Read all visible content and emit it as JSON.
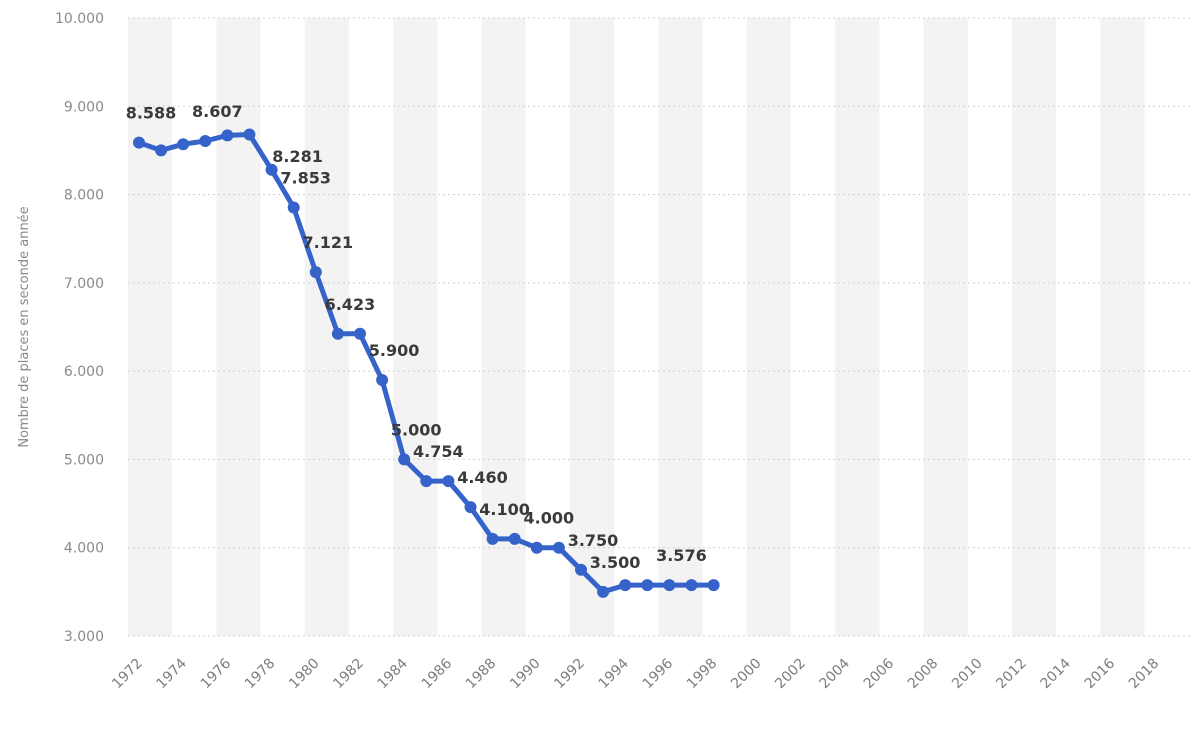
{
  "colors": {
    "line": "#3563c9",
    "label": "#3a3a3a",
    "grid": "#cfcfcf",
    "band": "#f3f3f3",
    "background": "#ffffff"
  },
  "chart_data": {
    "type": "line",
    "ylabel": "Nombre de places en seconde année",
    "xlabel": "",
    "ylim": [
      3000,
      10000
    ],
    "yticks": [
      3000,
      4000,
      5000,
      6000,
      7000,
      8000,
      9000,
      10000
    ],
    "ytick_labels": [
      "3.000",
      "4.000",
      "5.000",
      "6.000",
      "7.000",
      "8.000",
      "9.000",
      "10.000"
    ],
    "xlim": [
      1972,
      2019
    ],
    "xticks": [
      1972,
      1974,
      1976,
      1978,
      1980,
      1982,
      1984,
      1986,
      1988,
      1990,
      1992,
      1994,
      1996,
      1998,
      2000,
      2002,
      2004,
      2006,
      2008,
      2010,
      2012,
      2014,
      2016,
      2018
    ],
    "grid": true,
    "series": [
      {
        "x": [
          1972,
          1973,
          1974,
          1975,
          1976,
          1977,
          1978,
          1979,
          1980,
          1981,
          1982,
          1983,
          1984,
          1985,
          1986,
          1987,
          1988,
          1989,
          1990,
          1991,
          1992,
          1993,
          1994,
          1995,
          1996,
          1997,
          1998
        ],
        "values": [
          8588,
          8500,
          8570,
          8607,
          8670,
          8680,
          8281,
          7853,
          7121,
          6423,
          6423,
          5900,
          5000,
          4754,
          4754,
          4460,
          4100,
          4100,
          4000,
          4000,
          3750,
          3500,
          3576,
          3576,
          3576,
          3576,
          3576
        ]
      }
    ],
    "data_labels": [
      {
        "x": 1972,
        "value": 8588,
        "text": "8.588"
      },
      {
        "x": 1975,
        "value": 8607,
        "text": "8.607"
      },
      {
        "x": 1978,
        "value": 8281,
        "text": "8.281"
      },
      {
        "x": 1979,
        "value": 7853,
        "text": "7.853"
      },
      {
        "x": 1980,
        "value": 7121,
        "text": "7.121"
      },
      {
        "x": 1981,
        "value": 6423,
        "text": "6.423"
      },
      {
        "x": 1983,
        "value": 5900,
        "text": "5.900"
      },
      {
        "x": 1984,
        "value": 5000,
        "text": "5.000"
      },
      {
        "x": 1985,
        "value": 4754,
        "text": "4.754"
      },
      {
        "x": 1987,
        "value": 4460,
        "text": "4.460"
      },
      {
        "x": 1988,
        "value": 4100,
        "text": "4.100"
      },
      {
        "x": 1990,
        "value": 4000,
        "text": "4.000"
      },
      {
        "x": 1992,
        "value": 3750,
        "text": "3.750"
      },
      {
        "x": 1993,
        "value": 3500,
        "text": "3.500"
      },
      {
        "x": 1996,
        "value": 3576,
        "text": "3.576"
      }
    ]
  }
}
